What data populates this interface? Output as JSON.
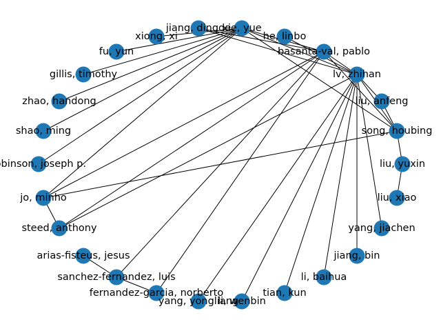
{
  "graph": {
    "node_color": "#1f77b4",
    "edge_color": "#000000",
    "label_color": "#000000",
    "nodes": [
      {
        "id": "xie_yue",
        "label": "xie, yue"
      },
      {
        "id": "jiang_dingde",
        "label": "jiang, dingde"
      },
      {
        "id": "he_linbo",
        "label": "he, linbo"
      },
      {
        "id": "xiong_xi",
        "label": "xiong, xi"
      },
      {
        "id": "basanta_val_pablo",
        "label": "basanta-val, pablo"
      },
      {
        "id": "fu_yun",
        "label": "fu, yun"
      },
      {
        "id": "lv_zhihan",
        "label": "lv, zhihan"
      },
      {
        "id": "gillis_timothy",
        "label": "gillis, timothy"
      },
      {
        "id": "liu_anfeng",
        "label": "liu, anfeng"
      },
      {
        "id": "zhao_handong",
        "label": "zhao, handong"
      },
      {
        "id": "song_houbing",
        "label": "song, houbing"
      },
      {
        "id": "shao_ming",
        "label": "shao, ming"
      },
      {
        "id": "robinson_joseph",
        "label": "robinson, joseph p."
      },
      {
        "id": "liu_yuxin",
        "label": "liu, yuxin"
      },
      {
        "id": "jo_minho",
        "label": "jo, minho"
      },
      {
        "id": "liu_xiao",
        "label": "liu, xiao"
      },
      {
        "id": "steed_anthony",
        "label": "steed, anthony"
      },
      {
        "id": "yang_jiachen",
        "label": "yang, jiachen"
      },
      {
        "id": "arias_fisteus_jesus",
        "label": "arias-fisteus, jesus"
      },
      {
        "id": "jiang_bin",
        "label": "jiang, bin"
      },
      {
        "id": "sanchez_fernandez_luis",
        "label": "sanchez-fernandez, luis"
      },
      {
        "id": "li_baihua",
        "label": "li, baihua"
      },
      {
        "id": "fernandez_garcia_norberto",
        "label": "fernandez-garcia, norberto"
      },
      {
        "id": "tian_kun",
        "label": "tian, kun"
      },
      {
        "id": "yang_yongliang",
        "label": "yang, yongliang"
      },
      {
        "id": "li_wenbin",
        "label": "li, wenbin"
      }
    ],
    "edges": [
      [
        "xie_yue",
        "xiong_xi"
      ],
      [
        "xie_yue",
        "fu_yun"
      ],
      [
        "xie_yue",
        "gillis_timothy"
      ],
      [
        "xie_yue",
        "zhao_handong"
      ],
      [
        "xie_yue",
        "shao_ming"
      ],
      [
        "xie_yue",
        "robinson_joseph"
      ],
      [
        "xie_yue",
        "jo_minho"
      ],
      [
        "xie_yue",
        "basanta_val_pablo"
      ],
      [
        "xie_yue",
        "lv_zhihan"
      ],
      [
        "xie_yue",
        "song_houbing"
      ],
      [
        "jiang_dingde",
        "lv_zhihan"
      ],
      [
        "jiang_dingde",
        "basanta_val_pablo"
      ],
      [
        "he_linbo",
        "lv_zhihan"
      ],
      [
        "basanta_val_pablo",
        "lv_zhihan"
      ],
      [
        "basanta_val_pablo",
        "song_houbing"
      ],
      [
        "basanta_val_pablo",
        "jo_minho"
      ],
      [
        "basanta_val_pablo",
        "steed_anthony"
      ],
      [
        "basanta_val_pablo",
        "sanchez_fernandez_luis"
      ],
      [
        "basanta_val_pablo",
        "fernandez_garcia_norberto"
      ],
      [
        "lv_zhihan",
        "liu_anfeng"
      ],
      [
        "lv_zhihan",
        "song_houbing"
      ],
      [
        "lv_zhihan",
        "yang_jiachen"
      ],
      [
        "lv_zhihan",
        "jiang_bin"
      ],
      [
        "lv_zhihan",
        "li_baihua"
      ],
      [
        "lv_zhihan",
        "tian_kun"
      ],
      [
        "lv_zhihan",
        "li_wenbin"
      ],
      [
        "lv_zhihan",
        "yang_yongliang"
      ],
      [
        "lv_zhihan",
        "steed_anthony"
      ],
      [
        "liu_anfeng",
        "song_houbing"
      ],
      [
        "song_houbing",
        "liu_yuxin"
      ],
      [
        "song_houbing",
        "jo_minho"
      ],
      [
        "liu_yuxin",
        "liu_xiao"
      ],
      [
        "jo_minho",
        "steed_anthony"
      ],
      [
        "arias_fisteus_jesus",
        "sanchez_fernandez_luis"
      ],
      [
        "sanchez_fernandez_luis",
        "fernandez_garcia_norberto"
      ]
    ]
  }
}
